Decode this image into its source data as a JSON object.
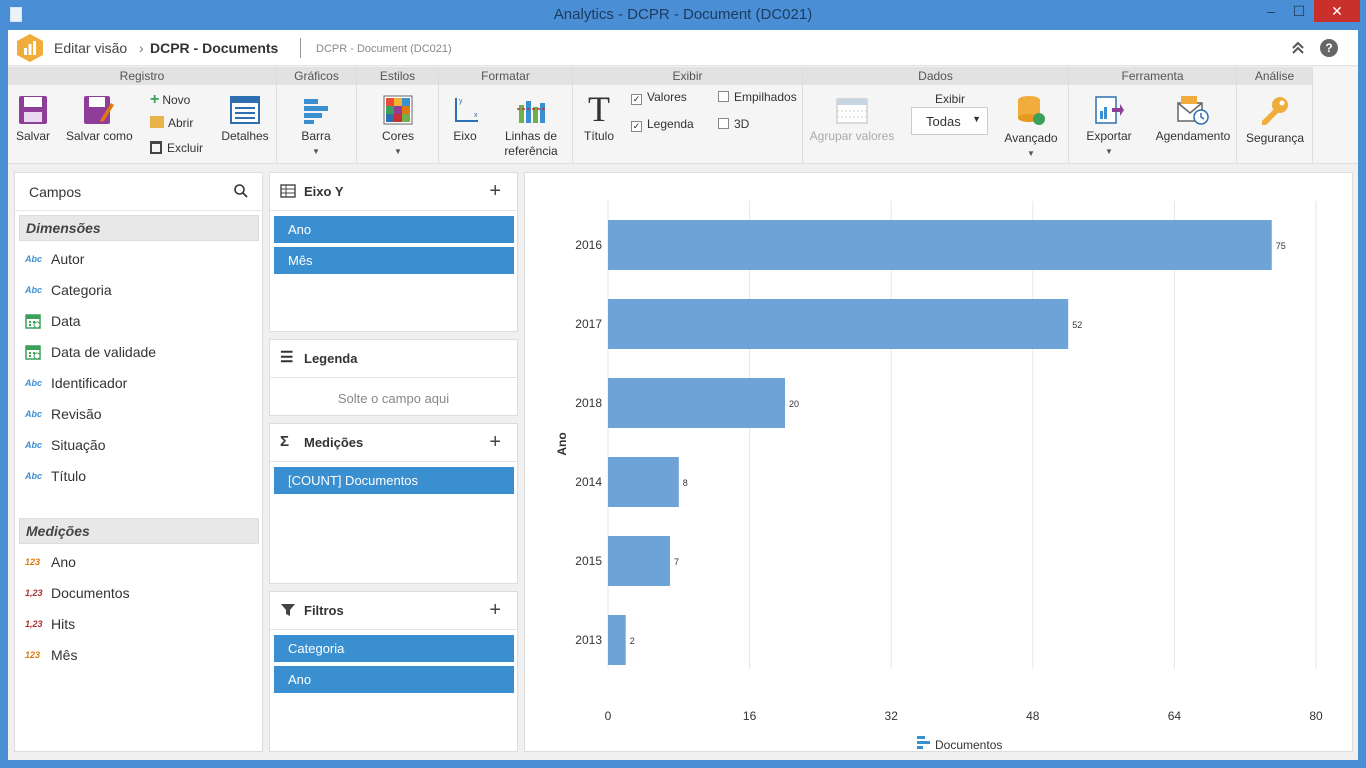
{
  "window": {
    "title": "Analytics - DCPR - Document (DC021)",
    "minimize": "–",
    "maximize": "☐",
    "close": "✕"
  },
  "header": {
    "edit_view": "Editar visão",
    "separator": "›",
    "document": "DCPR - Documents",
    "subtitle": "DCPR - Document (DC021)",
    "help": "?"
  },
  "ribbon": {
    "groups": {
      "registro": "Registro",
      "graficos": "Gráficos",
      "estilos": "Estilos",
      "formatar": "Formatar",
      "exibir": "Exibir",
      "dados": "Dados",
      "ferramenta": "Ferramenta",
      "analise": "Análise"
    },
    "buttons": {
      "salvar": "Salvar",
      "salvar_como": "Salvar como",
      "novo": "Novo",
      "abrir": "Abrir",
      "excluir": "Excluir",
      "detalhes": "Detalhes",
      "barra": "Barra",
      "cores": "Cores",
      "eixo": "Eixo",
      "linhas_ref_1": "Linhas de",
      "linhas_ref_2": "referência",
      "titulo": "Título",
      "valores": "Valores",
      "legenda": "Legenda",
      "empilhados": "Empilhados",
      "tresd": "3D",
      "agrupar_valores": "Agrupar valores",
      "exibir_label": "Exibir",
      "exibir_value": "Todas",
      "avancado": "Avançado",
      "exportar": "Exportar",
      "agendamento": "Agendamento",
      "seguranca": "Segurança"
    },
    "checks": {
      "valores": true,
      "legenda": true,
      "empilhados": false,
      "tresd": false
    }
  },
  "campos": {
    "title": "Campos",
    "dimensoes_title": "Dimensões",
    "dimensoes": [
      {
        "type": "Abc",
        "label": "Autor"
      },
      {
        "type": "Abc",
        "label": "Categoria"
      },
      {
        "type": "date",
        "label": "Data"
      },
      {
        "type": "date",
        "label": "Data de validade"
      },
      {
        "type": "Abc",
        "label": "Identificador"
      },
      {
        "type": "Abc",
        "label": "Revisão"
      },
      {
        "type": "Abc",
        "label": "Situação"
      },
      {
        "type": "Abc",
        "label": "Título"
      }
    ],
    "medicoes_title": "Medições",
    "medicoes": [
      {
        "type": "123",
        "label": "Ano"
      },
      {
        "type": "1,23",
        "label": "Documentos"
      },
      {
        "type": "1,23",
        "label": "Hits"
      },
      {
        "type": "123",
        "label": "Mês"
      }
    ]
  },
  "zones": {
    "eixo_y": {
      "title": "Eixo Y",
      "items": [
        "Ano",
        "Mês"
      ]
    },
    "legenda": {
      "title": "Legenda",
      "hint": "Solte o campo aqui"
    },
    "medicoes": {
      "title": "Medições",
      "items": [
        "[COUNT] Documentos"
      ]
    },
    "filtros": {
      "title": "Filtros",
      "items": [
        "Categoria",
        "Ano"
      ]
    }
  },
  "chart_data": {
    "type": "bar",
    "orientation": "horizontal",
    "categories": [
      "2016",
      "2017",
      "2018",
      "2014",
      "2015",
      "2013"
    ],
    "series": [
      {
        "name": "Documentos",
        "values": [
          75,
          52,
          20,
          8,
          7,
          2
        ],
        "color": "#6ea3d8"
      }
    ],
    "ylabel": "Ano",
    "xlim": [
      0,
      80
    ],
    "xticks": [
      0,
      16,
      32,
      48,
      64,
      80
    ],
    "grid": true,
    "legend": "bottom"
  },
  "colors": {
    "accent": "#3a8fd0",
    "bar": "#6ea3d8",
    "logo": "#f0ad3c"
  }
}
